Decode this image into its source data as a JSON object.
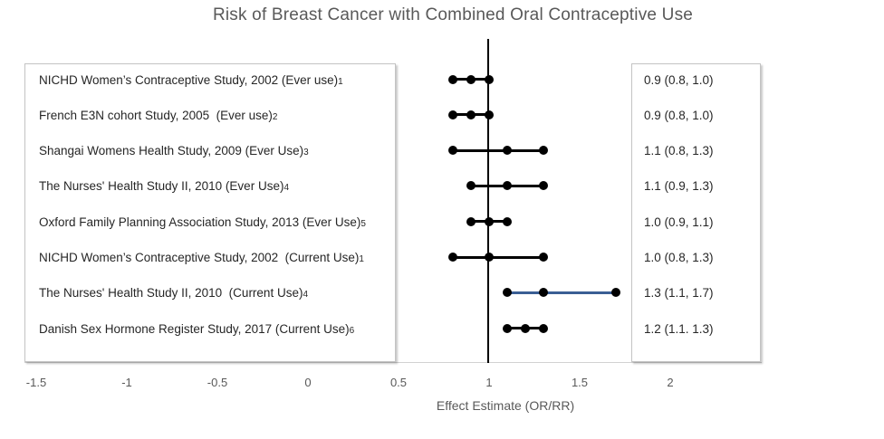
{
  "chart_data": {
    "type": "scatter",
    "subtype": "forest-plot",
    "title": "Risk of Breast Cancer with Combined Oral Contraceptive Use",
    "xlabel": "Effect Estimate (OR/RR)",
    "xlim": [
      -1.5,
      2.25
    ],
    "x_ticks": [
      "-1.5",
      "-1",
      "-0.5",
      "0",
      "0.5",
      "1",
      "1.5",
      "2"
    ],
    "x_tick_values": [
      -1.5,
      -1,
      -0.5,
      0,
      0.5,
      1,
      1.5,
      2
    ],
    "reference_line_x": 1,
    "grid": false,
    "legend": "none",
    "studies": [
      {
        "label": "NICHD Women’s Contraceptive Study, 2002 (Ever use)",
        "ref": "1",
        "estimate": 0.9,
        "ci_low": 0.8,
        "ci_high": 1.0,
        "display": "0.9 (0.8, 1.0)",
        "line_color": "#000000"
      },
      {
        "label": "French E3N cohort Study, 2005  (Ever use)",
        "ref": "2",
        "estimate": 0.9,
        "ci_low": 0.8,
        "ci_high": 1.0,
        "display": "0.9 (0.8, 1.0)",
        "line_color": "#000000"
      },
      {
        "label": "Shangai Womens Health Study, 2009 (Ever Use)",
        "ref": "3",
        "estimate": 1.1,
        "ci_low": 0.8,
        "ci_high": 1.3,
        "display": "1.1 (0.8, 1.3)",
        "line_color": "#000000"
      },
      {
        "label": "The Nurses' Health Study II, 2010 (Ever Use)",
        "ref": "4",
        "estimate": 1.1,
        "ci_low": 0.9,
        "ci_high": 1.3,
        "display": "1.1 (0.9, 1.3)",
        "line_color": "#000000"
      },
      {
        "label": "Oxford Family Planning Association Study, 2013 (Ever Use)",
        "ref": "5",
        "estimate": 1.0,
        "ci_low": 0.9,
        "ci_high": 1.1,
        "display": "1.0 (0.9, 1.1)",
        "line_color": "#000000"
      },
      {
        "label": "NICHD Women’s Contraceptive Study, 2002  (Current Use)",
        "ref": "1",
        "estimate": 1.0,
        "ci_low": 0.8,
        "ci_high": 1.3,
        "display": "1.0 (0.8, 1.3)",
        "line_color": "#000000"
      },
      {
        "label": "The Nurses' Health Study II, 2010  (Current Use)",
        "ref": "4",
        "estimate": 1.3,
        "ci_low": 1.1,
        "ci_high": 1.7,
        "display": "1.3 (1.1, 1.7)",
        "line_color": "#3a5e94"
      },
      {
        "label": "Danish Sex Hormone Register Study, 2017 (Current Use)",
        "ref": "6",
        "estimate": 1.2,
        "ci_low": 1.1,
        "ci_high": 1.3,
        "display": "1.2 (1.1. 1.3)",
        "line_color": "#000000"
      }
    ],
    "colors": {
      "title": "#595959",
      "study_text": "#262626",
      "axis_text": "#595959",
      "marker": "#000000",
      "default_line": "#000000",
      "highlight_line": "#3a5e94",
      "box_border": "#c3c3c3",
      "axis_line": "#d2d2d2",
      "reference_line": "#000000"
    }
  }
}
